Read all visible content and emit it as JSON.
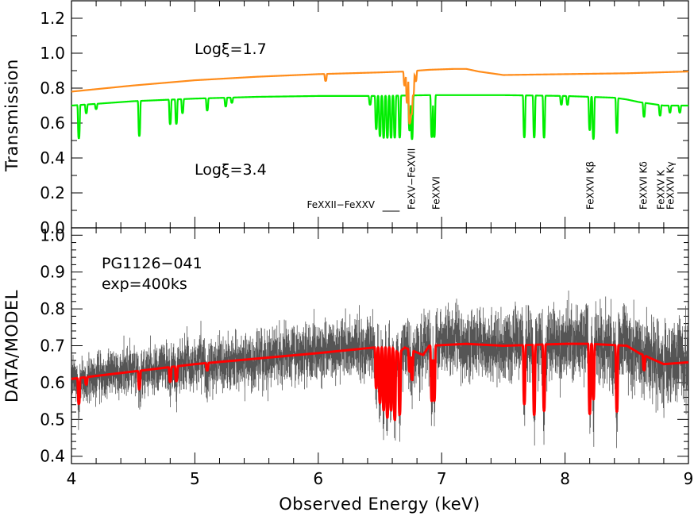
{
  "chart_data": [
    {
      "type": "line",
      "panel": "top",
      "ylabel": "Transmission",
      "ylim": [
        0.0,
        1.3
      ],
      "yticks": [
        "0.0",
        "0.2",
        "0.4",
        "0.6",
        "0.8",
        "1.0",
        "1.2"
      ],
      "xlim": [
        4,
        9
      ],
      "annotations": [
        "Logξ=1.7",
        "Logξ=3.4"
      ],
      "line_labels": [
        "FeXXII−FeXXV",
        "FeXV−FeXVII",
        "FeXXVI",
        "FeXXVI Kβ",
        "FeXXVI Kδ",
        "FeXXV K",
        "FeXXVI Kγ"
      ],
      "line_positions_keV": [
        6.55,
        6.75,
        6.95,
        8.2,
        8.63,
        8.77,
        8.85
      ],
      "series": [
        {
          "name": "Logξ=1.7",
          "color": "#ff8c1a",
          "continuum": [
            [
              4.0,
              0.78
            ],
            [
              4.5,
              0.815
            ],
            [
              5.0,
              0.845
            ],
            [
              5.5,
              0.865
            ],
            [
              6.0,
              0.88
            ],
            [
              6.5,
              0.89
            ],
            [
              6.7,
              0.895
            ],
            [
              6.9,
              0.905
            ],
            [
              7.1,
              0.91
            ],
            [
              7.2,
              0.91
            ],
            [
              7.3,
              0.895
            ],
            [
              7.5,
              0.875
            ],
            [
              8.0,
              0.88
            ],
            [
              8.5,
              0.885
            ],
            [
              9.0,
              0.895
            ]
          ],
          "absorption_lines": [
            [
              6.06,
              0.04
            ],
            [
              6.7,
              0.08
            ],
            [
              6.72,
              0.18
            ],
            [
              6.74,
              0.3
            ],
            [
              6.755,
              0.25
            ],
            [
              6.77,
              0.14
            ],
            [
              6.79,
              0.06
            ]
          ]
        },
        {
          "name": "Logξ=3.4",
          "color": "#00ee00",
          "continuum": [
            [
              4.0,
              0.7
            ],
            [
              4.2,
              0.71
            ],
            [
              4.5,
              0.725
            ],
            [
              5.0,
              0.74
            ],
            [
              5.5,
              0.75
            ],
            [
              6.0,
              0.755
            ],
            [
              6.5,
              0.755
            ],
            [
              6.9,
              0.76
            ],
            [
              7.2,
              0.76
            ],
            [
              7.5,
              0.76
            ],
            [
              8.0,
              0.755
            ],
            [
              8.4,
              0.745
            ],
            [
              8.5,
              0.735
            ],
            [
              8.6,
              0.72
            ],
            [
              8.7,
              0.71
            ],
            [
              8.8,
              0.7
            ],
            [
              9.0,
              0.7
            ]
          ],
          "absorption_lines": [
            [
              4.06,
              0.19
            ],
            [
              4.12,
              0.05
            ],
            [
              4.2,
              0.03
            ],
            [
              4.55,
              0.2
            ],
            [
              4.8,
              0.14
            ],
            [
              4.85,
              0.14
            ],
            [
              4.9,
              0.08
            ],
            [
              5.1,
              0.07
            ],
            [
              5.25,
              0.05
            ],
            [
              5.3,
              0.03
            ],
            [
              6.42,
              0.05
            ],
            [
              6.47,
              0.19
            ],
            [
              6.5,
              0.23
            ],
            [
              6.53,
              0.24
            ],
            [
              6.56,
              0.24
            ],
            [
              6.59,
              0.24
            ],
            [
              6.62,
              0.24
            ],
            [
              6.66,
              0.24
            ],
            [
              6.74,
              0.2
            ],
            [
              6.76,
              0.25
            ],
            [
              6.92,
              0.24
            ],
            [
              6.94,
              0.24
            ],
            [
              7.67,
              0.24
            ],
            [
              7.75,
              0.24
            ],
            [
              7.83,
              0.24
            ],
            [
              7.97,
              0.05
            ],
            [
              8.02,
              0.05
            ],
            [
              8.2,
              0.19
            ],
            [
              8.23,
              0.24
            ],
            [
              8.42,
              0.2
            ],
            [
              8.64,
              0.08
            ],
            [
              8.77,
              0.06
            ],
            [
              8.85,
              0.04
            ],
            [
              8.93,
              0.04
            ]
          ]
        }
      ],
      "grid": false
    },
    {
      "type": "line",
      "panel": "bottom",
      "xlabel": "Observed Energy (keV)",
      "ylabel": "DATA/MODEL",
      "xlim": [
        4,
        9
      ],
      "xticks": [
        "4",
        "5",
        "6",
        "7",
        "8",
        "9"
      ],
      "ylim": [
        0.38,
        1.02
      ],
      "yticks": [
        "0.4",
        "0.5",
        "0.6",
        "0.7",
        "0.8",
        "0.9",
        "1.0"
      ],
      "annotations": [
        "PG1126−041",
        "exp=400ks"
      ],
      "series": [
        {
          "name": "model",
          "color": "#ff0000",
          "continuum": [
            [
              4.0,
              0.61
            ],
            [
              4.5,
              0.63
            ],
            [
              5.0,
              0.65
            ],
            [
              5.5,
              0.665
            ],
            [
              6.0,
              0.68
            ],
            [
              6.3,
              0.69
            ],
            [
              6.45,
              0.695
            ],
            [
              6.6,
              0.695
            ],
            [
              6.65,
              0.68
            ],
            [
              6.7,
              0.695
            ],
            [
              6.85,
              0.675
            ],
            [
              6.9,
              0.7
            ],
            [
              7.2,
              0.705
            ],
            [
              7.5,
              0.7
            ],
            [
              8.0,
              0.705
            ],
            [
              8.2,
              0.705
            ],
            [
              8.5,
              0.7
            ],
            [
              8.6,
              0.68
            ],
            [
              8.8,
              0.65
            ],
            [
              9.0,
              0.655
            ]
          ],
          "absorption_lines": [
            [
              4.06,
              0.07
            ],
            [
              4.12,
              0.02
            ],
            [
              4.55,
              0.05
            ],
            [
              4.8,
              0.04
            ],
            [
              4.85,
              0.04
            ],
            [
              5.1,
              0.02
            ],
            [
              6.47,
              0.11
            ],
            [
              6.5,
              0.15
            ],
            [
              6.53,
              0.17
            ],
            [
              6.56,
              0.19
            ],
            [
              6.59,
              0.17
            ],
            [
              6.62,
              0.19
            ],
            [
              6.66,
              0.17
            ],
            [
              6.74,
              0.06
            ],
            [
              6.76,
              0.08
            ],
            [
              6.92,
              0.15
            ],
            [
              6.94,
              0.15
            ],
            [
              7.67,
              0.16
            ],
            [
              7.75,
              0.19
            ],
            [
              7.83,
              0.18
            ],
            [
              8.2,
              0.19
            ],
            [
              8.23,
              0.15
            ],
            [
              8.42,
              0.18
            ],
            [
              8.64,
              0.04
            ]
          ]
        },
        {
          "name": "data",
          "color": "#555555",
          "style": "noisy residual spectrum with error bars",
          "scatter_sd": 0.045
        }
      ],
      "grid": false
    }
  ]
}
